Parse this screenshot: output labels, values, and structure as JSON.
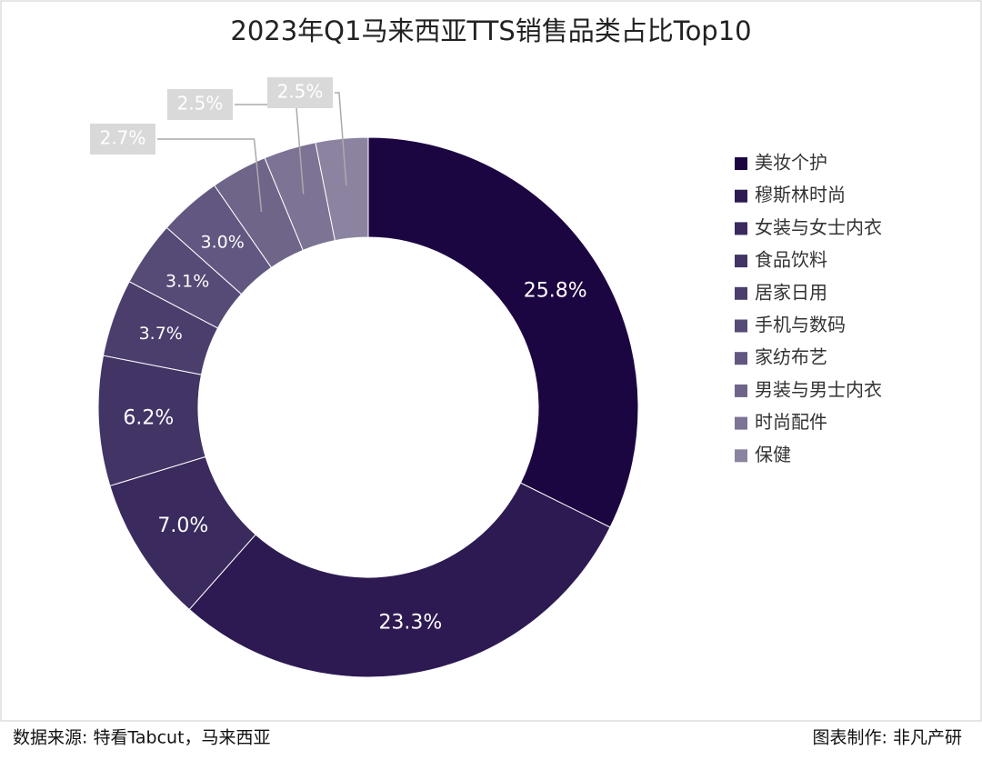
{
  "chart_data": {
    "type": "pie",
    "title": "2023年Q1马来西亚TTS销售品类占比Top10",
    "categories": [
      "美妆个护",
      "穆斯林时尚",
      "女装与女士内衣",
      "食品饮料",
      "居家日用",
      "手机与数码",
      "家纺布艺",
      "男装与男士内衣",
      "时尚配件",
      "保健"
    ],
    "values": [
      25.8,
      23.3,
      7.0,
      6.2,
      3.7,
      3.1,
      3.0,
      2.7,
      2.5,
      2.5
    ],
    "value_labels": [
      "25.8%",
      "23.3%",
      "7.0%",
      "6.2%",
      "3.7%",
      "3.1%",
      "3.0%",
      "2.7%",
      "2.5%",
      "2.5%"
    ],
    "colors": [
      "#1c0642",
      "#2d1a52",
      "#3a2a5e",
      "#433466",
      "#4b3d6c",
      "#564a76",
      "#625780",
      "#6f6589",
      "#7d7394",
      "#8c83a0"
    ],
    "legend": "right"
  },
  "footer": {
    "source": "数据来源: 特看Tabcut，马来西亚",
    "credit": "图表制作: 非凡产研"
  }
}
